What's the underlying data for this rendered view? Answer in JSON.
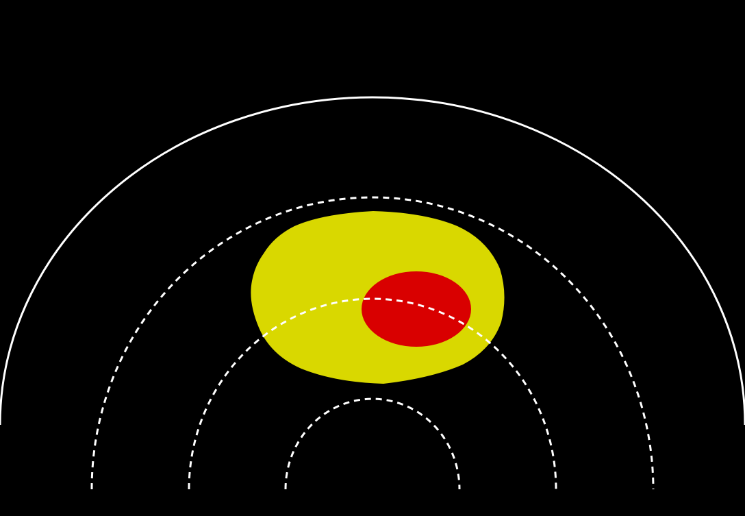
{
  "diagram": {
    "background_color": "#000000",
    "outer_boundary": {
      "shape": "semicircle",
      "line_style": "solid",
      "color": "#ffffff"
    },
    "range_rings": {
      "count": 3,
      "line_style": "dashed",
      "color": "#ffffff"
    },
    "regions": [
      {
        "name": "outer-region",
        "color": "#d9d800"
      },
      {
        "name": "inner-region",
        "color": "#d90000"
      }
    ]
  }
}
